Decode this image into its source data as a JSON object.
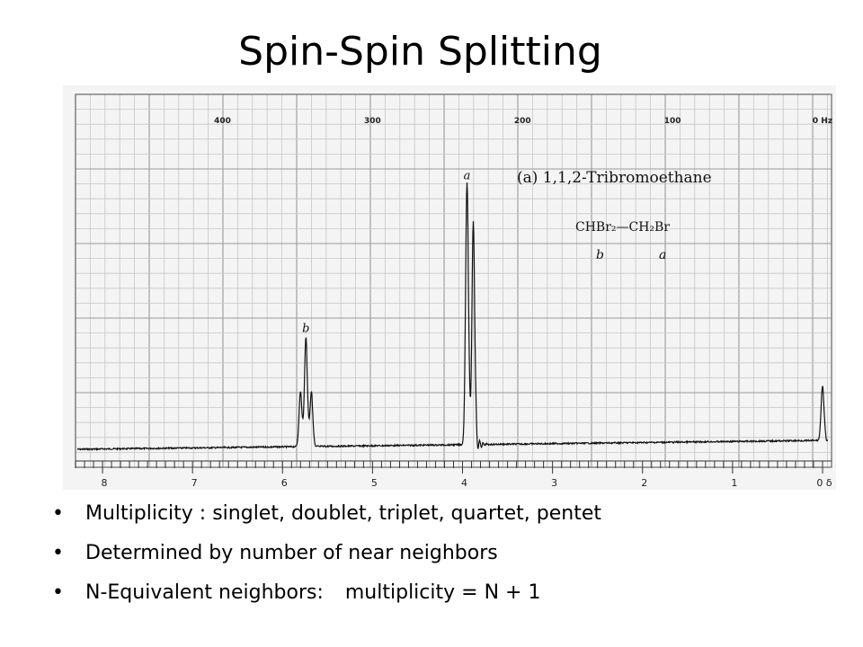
{
  "slide": {
    "title": "Spin-Spin Splitting",
    "bullets": [
      "Multiplicity : singlet, doublet, triplet, quartet, pentet",
      "Determined by number of near neighbors",
      {
        "left": "N-Equivalent neighbors:",
        "right": "multiplicity = N + 1"
      }
    ]
  },
  "chart_data": {
    "type": "line",
    "title": "(a)  1,1,2-Tribromoethane",
    "formula": "CHBr₂—CH₂Br",
    "formula_labels": [
      "b",
      "a"
    ],
    "x_hz_ticks": [
      "400",
      "300",
      "200",
      "100",
      "0 Hz"
    ],
    "x_hz_values": [
      400,
      300,
      200,
      100,
      0
    ],
    "x_ppm_ticks": [
      "8",
      "7",
      "6",
      "5",
      "4",
      "3",
      "2",
      "1",
      "0 δ"
    ],
    "x_ppm_values": [
      8,
      7,
      6,
      5,
      4,
      3,
      2,
      1,
      0
    ],
    "xlim_ppm": [
      8.3,
      -0.1
    ],
    "ylim": [
      0,
      1
    ],
    "grid": true,
    "peaks": [
      {
        "label": "b",
        "multiplet": "triplet",
        "lines_ppm": [
          5.8,
          5.74,
          5.68
        ],
        "heights": [
          0.18,
          0.36,
          0.18
        ]
      },
      {
        "label": "a",
        "multiplet": "doublet",
        "lines_ppm": [
          3.95,
          3.88
        ],
        "heights": [
          0.86,
          0.72
        ]
      },
      {
        "label": "",
        "multiplet": "singlet",
        "lines_ppm": [
          0.0
        ],
        "heights": [
          0.18
        ]
      }
    ]
  }
}
